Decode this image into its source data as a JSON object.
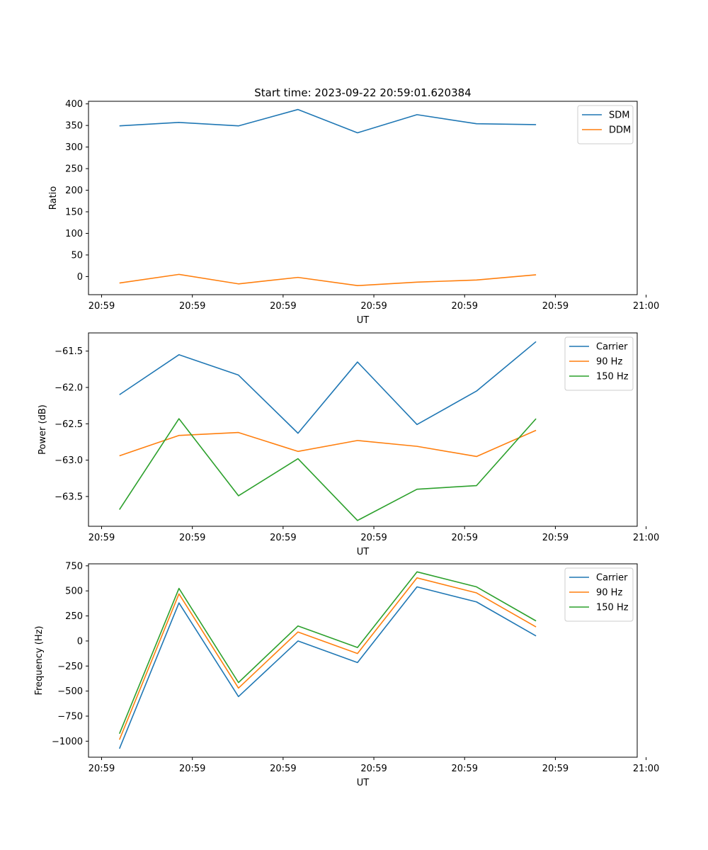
{
  "figure": {
    "title": "Start time: 2023-09-22 20:59:01.620384"
  },
  "chart_data": [
    {
      "type": "line",
      "title": "Start time: 2023-09-22 20:59:01.620384",
      "xlabel": "UT",
      "ylabel": "Ratio",
      "x": [
        1,
        2,
        3,
        4,
        5,
        6,
        7,
        8
      ],
      "xlim": [
        0.48,
        9.7
      ],
      "x_ticks": [
        0.7,
        2.225,
        3.75,
        5.275,
        6.8,
        8.325,
        9.85
      ],
      "x_tick_labels": [
        "20:59",
        "20:59",
        "20:59",
        "20:59",
        "20:59",
        "20:59",
        "21:00"
      ],
      "ylim": [
        -42,
        406
      ],
      "y_ticks": [
        0,
        50,
        100,
        150,
        200,
        250,
        300,
        350,
        400
      ],
      "y_tick_labels": [
        "0",
        "50",
        "100",
        "150",
        "200",
        "250",
        "300",
        "350",
        "400"
      ],
      "legend_position": "top-right",
      "series": [
        {
          "name": "SDM",
          "color": "#1f77b4",
          "values": [
            349,
            357,
            349,
            387,
            333,
            375,
            354,
            352
          ]
        },
        {
          "name": "DDM",
          "color": "#ff7f0e",
          "values": [
            -15,
            5,
            -17,
            -2,
            -21,
            -13,
            -8,
            4
          ]
        }
      ]
    },
    {
      "type": "line",
      "title": "",
      "xlabel": "UT",
      "ylabel": "Power (dB)",
      "x": [
        1,
        2,
        3,
        4,
        5,
        6,
        7,
        8
      ],
      "xlim": [
        0.48,
        9.7
      ],
      "x_ticks": [
        0.7,
        2.225,
        3.75,
        5.275,
        6.8,
        8.325,
        9.85
      ],
      "x_tick_labels": [
        "20:59",
        "20:59",
        "20:59",
        "20:59",
        "20:59",
        "20:59",
        "21:00"
      ],
      "ylim": [
        -63.91,
        -61.25
      ],
      "y_ticks": [
        -63.5,
        -63.0,
        -62.5,
        -62.0,
        -61.5
      ],
      "y_tick_labels": [
        "−63.5",
        "−63.0",
        "−62.5",
        "−62.0",
        "−61.5"
      ],
      "legend_position": "top-right",
      "series": [
        {
          "name": "Carrier",
          "color": "#1f77b4",
          "values": [
            -62.1,
            -61.55,
            -61.83,
            -62.63,
            -61.65,
            -62.51,
            -62.05,
            -61.37
          ]
        },
        {
          "name": "90 Hz",
          "color": "#ff7f0e",
          "values": [
            -62.94,
            -62.66,
            -62.62,
            -62.88,
            -62.73,
            -62.81,
            -62.95,
            -62.59
          ]
        },
        {
          "name": "150 Hz",
          "color": "#2ca02c",
          "values": [
            -63.68,
            -62.43,
            -63.49,
            -62.98,
            -63.83,
            -63.4,
            -63.35,
            -62.43
          ]
        }
      ]
    },
    {
      "type": "line",
      "title": "",
      "xlabel": "UT",
      "ylabel": "Frequency (Hz)",
      "x": [
        1,
        2,
        3,
        4,
        5,
        6,
        7,
        8
      ],
      "xlim": [
        0.48,
        9.7
      ],
      "x_ticks": [
        0.7,
        2.225,
        3.75,
        5.275,
        6.8,
        8.325,
        9.85
      ],
      "x_tick_labels": [
        "20:59",
        "20:59",
        "20:59",
        "20:59",
        "20:59",
        "20:59",
        "21:00"
      ],
      "ylim": [
        -1160,
        770
      ],
      "y_ticks": [
        -1000,
        -750,
        -500,
        -250,
        0,
        250,
        500,
        750
      ],
      "y_tick_labels": [
        "−1000",
        "−750",
        "−500",
        "−250",
        "0",
        "250",
        "500",
        "750"
      ],
      "legend_position": "top-right",
      "series": [
        {
          "name": "Carrier",
          "color": "#1f77b4",
          "values": [
            -1075,
            380,
            -555,
            0,
            -215,
            540,
            390,
            50
          ]
        },
        {
          "name": "90 Hz",
          "color": "#ff7f0e",
          "values": [
            -985,
            470,
            -470,
            90,
            -125,
            630,
            480,
            140
          ]
        },
        {
          "name": "150 Hz",
          "color": "#2ca02c",
          "values": [
            -925,
            525,
            -415,
            150,
            -65,
            690,
            540,
            200
          ]
        }
      ]
    }
  ]
}
